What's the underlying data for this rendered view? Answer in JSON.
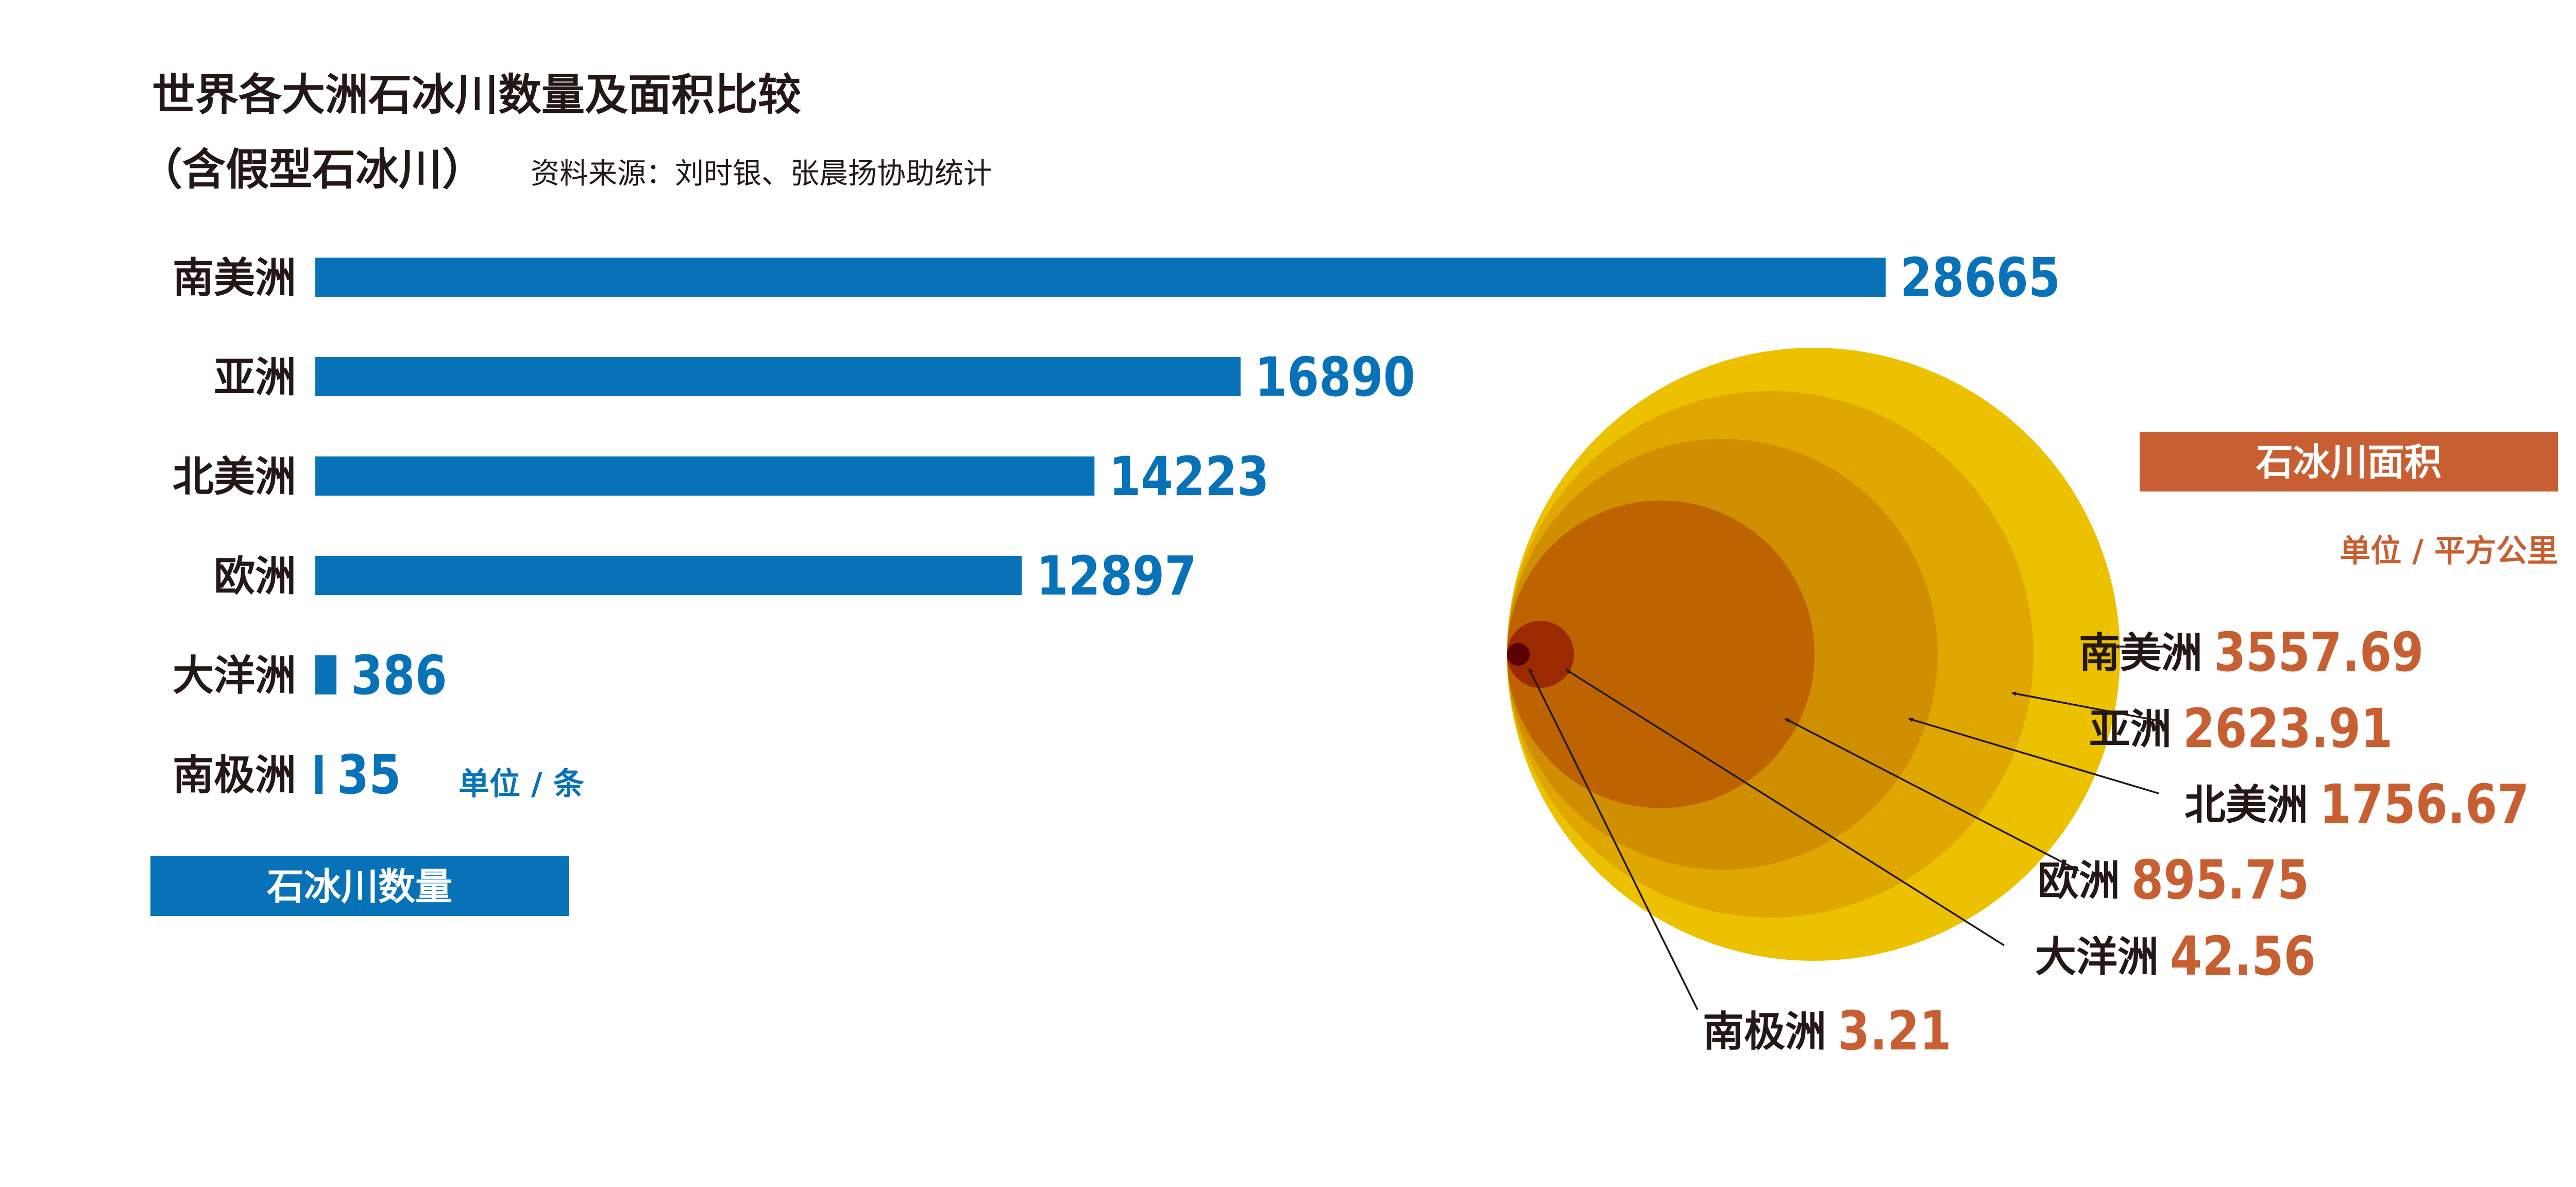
{
  "title": "世界各大洲石冰川数量及面积比较",
  "subtitle": "（含假型石冰川）",
  "source": "资料来源：刘时银、张晨扬协助统计",
  "colors": {
    "bar": "#0872b9",
    "count_label": "#0872b9",
    "area_label": "#c85f33",
    "tag_count_bg": "#0872b9",
    "tag_area_bg": "#c85f33",
    "text_dark": "#231815",
    "circle_fills": [
      "#ecc100",
      "#e0a700",
      "#d08f00",
      "#bd6400",
      "#9c2a00",
      "#5a0000"
    ]
  },
  "chart_data": [
    {
      "type": "bar",
      "orientation": "horizontal",
      "tag_label": "石冰川数量",
      "unit_label": "单位 / 条",
      "categories": [
        "南美洲",
        "亚洲",
        "北美洲",
        "欧洲",
        "大洋洲",
        "南极洲"
      ],
      "values": [
        28665,
        16890,
        14223,
        12897,
        386,
        35
      ],
      "value_labels": [
        "28665",
        "16890",
        "14223",
        "12897",
        "386",
        "35"
      ],
      "xlim": [
        0,
        28665
      ]
    },
    {
      "type": "area",
      "form": "nested-circles",
      "tag_label": "石冰川面积",
      "unit_label": "单位 / 平方公里",
      "categories": [
        "南美洲",
        "亚洲",
        "北美洲",
        "欧洲",
        "大洋洲",
        "南极洲"
      ],
      "values": [
        3557.69,
        2623.91,
        1756.67,
        895.75,
        42.56,
        3.21
      ],
      "value_labels": [
        "3557.69",
        "2623.91",
        "1756.67",
        "895.75",
        "42.56",
        "3.21"
      ]
    }
  ]
}
